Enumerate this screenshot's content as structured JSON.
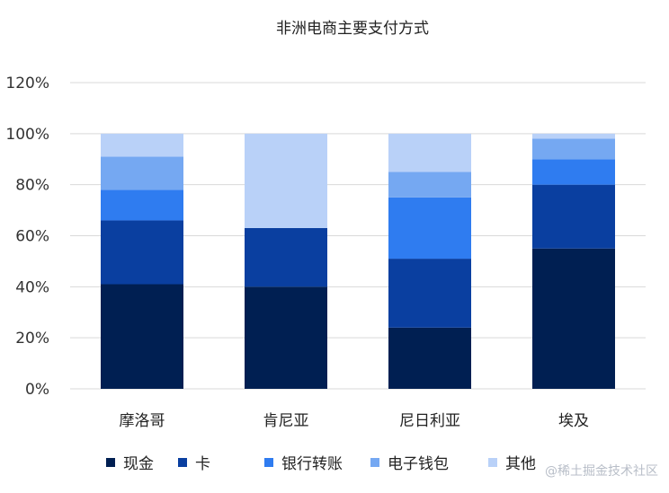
{
  "chart_data": {
    "type": "bar",
    "stacked": true,
    "title": "非洲电商主要支付方式",
    "categories": [
      "摩洛哥",
      "肯尼亚",
      "尼日利亚",
      "埃及"
    ],
    "series": [
      {
        "name": "现金",
        "color": "#001f52",
        "values": [
          41,
          40,
          24,
          55
        ]
      },
      {
        "name": "卡",
        "color": "#0a3fa0",
        "values": [
          25,
          23,
          27,
          25
        ]
      },
      {
        "name": "银行转账",
        "color": "#2f7cf0",
        "values": [
          12,
          0,
          24,
          10
        ]
      },
      {
        "name": "电子钱包",
        "color": "#75a8f2",
        "values": [
          13,
          0,
          10,
          8
        ]
      },
      {
        "name": "其他",
        "color": "#b9d1f8",
        "values": [
          9,
          37,
          15,
          2
        ]
      }
    ],
    "yticks": [
      "0%",
      "20%",
      "40%",
      "60%",
      "80%",
      "100%",
      "120%"
    ],
    "ylim": [
      0,
      120
    ],
    "grid": true,
    "legend_position": "bottom"
  },
  "watermark": "@稀土掘金技术社区"
}
